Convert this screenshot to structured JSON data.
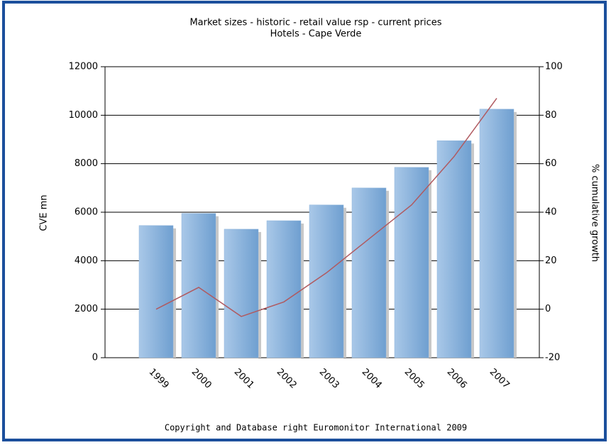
{
  "chart_data": {
    "type": "bar",
    "title": "Market sizes - historic - retail value rsp - current prices",
    "subtitle": "Hotels - Cape Verde",
    "ylabel": "CVE mn",
    "y2label": "% cumulative growth",
    "footer": "Copyright and Database right Euromonitor International 2009",
    "categories": [
      "1999",
      "2000",
      "2001",
      "2002",
      "2003",
      "2004",
      "2005",
      "2006",
      "2007"
    ],
    "series": [
      {
        "name": "CVE mn",
        "type": "bar",
        "color": "#8db4dc",
        "values": [
          5450,
          5950,
          5300,
          5650,
          6300,
          7000,
          7850,
          8950,
          10250
        ]
      },
      {
        "name": "% cumulative growth",
        "type": "line",
        "axis": "y2",
        "color": "#b05a60",
        "values": [
          0,
          9,
          -3,
          3,
          15,
          29,
          43,
          63,
          87
        ]
      }
    ],
    "ylim": [
      0,
      12000
    ],
    "yticks": [
      0,
      2000,
      4000,
      6000,
      8000,
      10000,
      12000
    ],
    "y2lim": [
      -20,
      100
    ],
    "y2ticks": [
      -20,
      0,
      20,
      40,
      60,
      80,
      100
    ],
    "grid": true
  }
}
